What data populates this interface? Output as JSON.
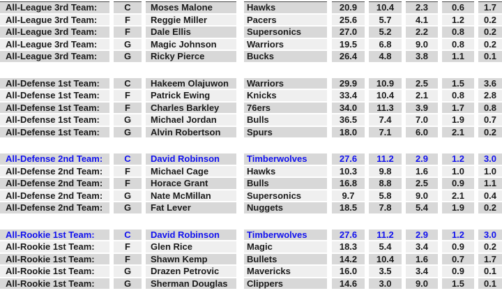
{
  "colors": {
    "row_dark": "#d8d8d8",
    "row_light": "#efefef",
    "text": "#1a1a1a",
    "highlight_text": "#1111ee",
    "top_cutoff_line": "#4a4a4a",
    "background": "#ffffff"
  },
  "table": {
    "stat_columns_count": 5,
    "blocks": [
      {
        "id": "all-league-3rd-team",
        "rows": [
          {
            "award": "All-League 3rd Team:",
            "pos": "C",
            "player": "Moses Malone",
            "team": "Hawks",
            "stats": [
              "20.9",
              "10.4",
              "2.3",
              "0.6",
              "1.7"
            ],
            "highlighted": false
          },
          {
            "award": "All-League 3rd Team:",
            "pos": "F",
            "player": "Reggie Miller",
            "team": "Pacers",
            "stats": [
              "25.6",
              "5.7",
              "4.1",
              "1.2",
              "0.2"
            ],
            "highlighted": false
          },
          {
            "award": "All-League 3rd Team:",
            "pos": "F",
            "player": "Dale Ellis",
            "team": "Supersonics",
            "stats": [
              "27.0",
              "5.2",
              "2.2",
              "0.8",
              "0.2"
            ],
            "highlighted": false
          },
          {
            "award": "All-League 3rd Team:",
            "pos": "G",
            "player": "Magic Johnson",
            "team": "Warriors",
            "stats": [
              "19.5",
              "6.8",
              "9.0",
              "0.8",
              "0.2"
            ],
            "highlighted": false
          },
          {
            "award": "All-League 3rd Team:",
            "pos": "G",
            "player": "Ricky Pierce",
            "team": "Bucks",
            "stats": [
              "26.4",
              "4.8",
              "3.8",
              "1.1",
              "0.1"
            ],
            "highlighted": false
          }
        ]
      },
      {
        "id": "all-defense-1st-team",
        "rows": [
          {
            "award": "All-Defense 1st Team:",
            "pos": "C",
            "player": "Hakeem Olajuwon",
            "team": "Warriors",
            "stats": [
              "29.9",
              "10.9",
              "2.5",
              "1.5",
              "3.6"
            ],
            "highlighted": false
          },
          {
            "award": "All-Defense 1st Team:",
            "pos": "F",
            "player": "Patrick Ewing",
            "team": "Knicks",
            "stats": [
              "33.4",
              "10.4",
              "2.1",
              "0.8",
              "2.8"
            ],
            "highlighted": false
          },
          {
            "award": "All-Defense 1st Team:",
            "pos": "F",
            "player": "Charles Barkley",
            "team": "76ers",
            "stats": [
              "34.0",
              "11.3",
              "3.9",
              "1.7",
              "0.8"
            ],
            "highlighted": false
          },
          {
            "award": "All-Defense 1st Team:",
            "pos": "G",
            "player": "Michael Jordan",
            "team": "Bulls",
            "stats": [
              "36.5",
              "7.4",
              "7.0",
              "1.9",
              "0.7"
            ],
            "highlighted": false
          },
          {
            "award": "All-Defense 1st Team:",
            "pos": "G",
            "player": "Alvin Robertson",
            "team": "Spurs",
            "stats": [
              "18.0",
              "7.1",
              "6.0",
              "2.1",
              "0.2"
            ],
            "highlighted": false
          }
        ]
      },
      {
        "id": "all-defense-2nd-team",
        "rows": [
          {
            "award": "All-Defense 2nd Team:",
            "pos": "C",
            "player": "David Robinson",
            "team": "Timberwolves",
            "stats": [
              "27.6",
              "11.2",
              "2.9",
              "1.2",
              "3.0"
            ],
            "highlighted": true
          },
          {
            "award": "All-Defense 2nd Team:",
            "pos": "F",
            "player": "Michael Cage",
            "team": "Hawks",
            "stats": [
              "10.3",
              "9.8",
              "1.6",
              "1.0",
              "1.0"
            ],
            "highlighted": false
          },
          {
            "award": "All-Defense 2nd Team:",
            "pos": "F",
            "player": "Horace Grant",
            "team": "Bulls",
            "stats": [
              "16.8",
              "8.8",
              "2.5",
              "0.9",
              "1.1"
            ],
            "highlighted": false
          },
          {
            "award": "All-Defense 2nd Team:",
            "pos": "G",
            "player": "Nate McMillan",
            "team": "Supersonics",
            "stats": [
              "9.7",
              "5.8",
              "9.0",
              "2.1",
              "0.4"
            ],
            "highlighted": false
          },
          {
            "award": "All-Defense 2nd Team:",
            "pos": "G",
            "player": "Fat Lever",
            "team": "Nuggets",
            "stats": [
              "18.5",
              "7.8",
              "5.4",
              "1.9",
              "0.2"
            ],
            "highlighted": false
          }
        ]
      },
      {
        "id": "all-rookie-1st-team",
        "rows": [
          {
            "award": "All-Rookie 1st Team:",
            "pos": "C",
            "player": "David Robinson",
            "team": "Timberwolves",
            "stats": [
              "27.6",
              "11.2",
              "2.9",
              "1.2",
              "3.0"
            ],
            "highlighted": true
          },
          {
            "award": "All-Rookie 1st Team:",
            "pos": "F",
            "player": "Glen Rice",
            "team": "Magic",
            "stats": [
              "18.3",
              "5.4",
              "3.4",
              "0.9",
              "0.2"
            ],
            "highlighted": false
          },
          {
            "award": "All-Rookie 1st Team:",
            "pos": "F",
            "player": "Shawn Kemp",
            "team": "Bullets",
            "stats": [
              "14.2",
              "10.4",
              "1.6",
              "0.7",
              "1.7"
            ],
            "highlighted": false
          },
          {
            "award": "All-Rookie 1st Team:",
            "pos": "G",
            "player": "Drazen Petrovic",
            "team": "Mavericks",
            "stats": [
              "16.0",
              "3.5",
              "3.4",
              "0.9",
              "0.1"
            ],
            "highlighted": false
          },
          {
            "award": "All-Rookie 1st Team:",
            "pos": "G",
            "player": "Sherman Douglas",
            "team": "Clippers",
            "stats": [
              "14.6",
              "3.0",
              "9.0",
              "1.5",
              "0.1"
            ],
            "highlighted": false
          }
        ]
      }
    ]
  }
}
